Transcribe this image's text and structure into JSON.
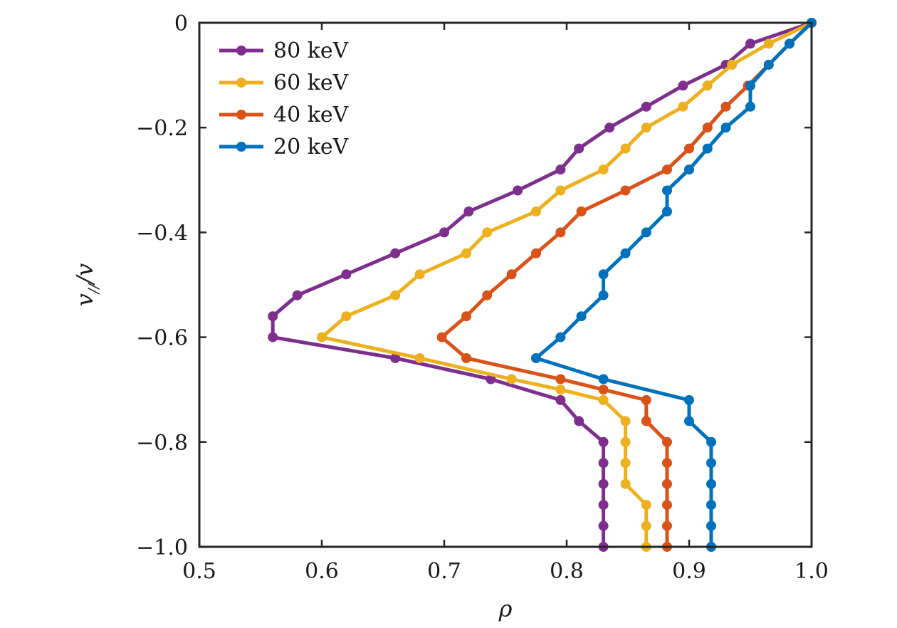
{
  "chart_data": {
    "type": "line",
    "title": "",
    "xlabel": "ρ",
    "ylabel": "v//v",
    "ylabel_parts": {
      "main": "v",
      "sub": "//",
      "rest": "/v"
    },
    "xlim": [
      0.5,
      1.0
    ],
    "ylim": [
      -1.0,
      0
    ],
    "xticks": [
      0.5,
      0.6,
      0.7,
      0.8,
      0.9,
      1.0
    ],
    "xtick_labels": [
      "0.5",
      "0.6",
      "0.7",
      "0.8",
      "0.9",
      "1.0"
    ],
    "yticks": [
      0,
      -0.2,
      -0.4,
      -0.6,
      -0.8,
      -1.0
    ],
    "ytick_labels": [
      "0",
      "−0.2",
      "−0.4",
      "−0.6",
      "−0.8",
      "−1.0"
    ],
    "grid": false,
    "legend": "top-left",
    "series": [
      {
        "name": "80 keV",
        "color": "#7e2f8e",
        "points": [
          [
            1.0,
            0
          ],
          [
            0.95,
            -0.04
          ],
          [
            0.93,
            -0.08
          ],
          [
            0.895,
            -0.12
          ],
          [
            0.865,
            -0.16
          ],
          [
            0.835,
            -0.2
          ],
          [
            0.81,
            -0.24
          ],
          [
            0.795,
            -0.28
          ],
          [
            0.76,
            -0.32
          ],
          [
            0.72,
            -0.36
          ],
          [
            0.7,
            -0.4
          ],
          [
            0.66,
            -0.44
          ],
          [
            0.62,
            -0.48
          ],
          [
            0.58,
            -0.52
          ],
          [
            0.56,
            -0.56
          ],
          [
            0.56,
            -0.6
          ],
          [
            0.66,
            -0.64
          ],
          [
            0.738,
            -0.68
          ],
          [
            0.795,
            -0.72
          ],
          [
            0.81,
            -0.76
          ],
          [
            0.83,
            -0.8
          ],
          [
            0.83,
            -0.84
          ],
          [
            0.83,
            -0.88
          ],
          [
            0.83,
            -0.92
          ],
          [
            0.83,
            -0.96
          ],
          [
            0.83,
            -1.0
          ]
        ]
      },
      {
        "name": "60 keV",
        "color": "#edb120",
        "points": [
          [
            1.0,
            0
          ],
          [
            0.965,
            -0.04
          ],
          [
            0.935,
            -0.08
          ],
          [
            0.915,
            -0.12
          ],
          [
            0.895,
            -0.16
          ],
          [
            0.865,
            -0.2
          ],
          [
            0.848,
            -0.24
          ],
          [
            0.83,
            -0.28
          ],
          [
            0.795,
            -0.32
          ],
          [
            0.775,
            -0.36
          ],
          [
            0.735,
            -0.4
          ],
          [
            0.718,
            -0.44
          ],
          [
            0.68,
            -0.48
          ],
          [
            0.66,
            -0.52
          ],
          [
            0.62,
            -0.56
          ],
          [
            0.6,
            -0.6
          ],
          [
            0.68,
            -0.64
          ],
          [
            0.755,
            -0.68
          ],
          [
            0.795,
            -0.7
          ],
          [
            0.83,
            -0.72
          ],
          [
            0.848,
            -0.76
          ],
          [
            0.848,
            -0.8
          ],
          [
            0.848,
            -0.84
          ],
          [
            0.848,
            -0.88
          ],
          [
            0.865,
            -0.92
          ],
          [
            0.865,
            -0.96
          ],
          [
            0.865,
            -1.0
          ]
        ]
      },
      {
        "name": "40 keV",
        "color": "#d95319",
        "points": [
          [
            1.0,
            0
          ],
          [
            0.982,
            -0.04
          ],
          [
            0.965,
            -0.08
          ],
          [
            0.948,
            -0.12
          ],
          [
            0.93,
            -0.16
          ],
          [
            0.915,
            -0.2
          ],
          [
            0.9,
            -0.24
          ],
          [
            0.882,
            -0.28
          ],
          [
            0.848,
            -0.32
          ],
          [
            0.812,
            -0.36
          ],
          [
            0.795,
            -0.4
          ],
          [
            0.775,
            -0.44
          ],
          [
            0.755,
            -0.48
          ],
          [
            0.735,
            -0.52
          ],
          [
            0.718,
            -0.56
          ],
          [
            0.698,
            -0.6
          ],
          [
            0.718,
            -0.64
          ],
          [
            0.795,
            -0.68
          ],
          [
            0.83,
            -0.7
          ],
          [
            0.865,
            -0.72
          ],
          [
            0.865,
            -0.76
          ],
          [
            0.882,
            -0.8
          ],
          [
            0.882,
            -0.84
          ],
          [
            0.882,
            -0.88
          ],
          [
            0.882,
            -0.92
          ],
          [
            0.882,
            -0.96
          ],
          [
            0.882,
            -1.0
          ]
        ]
      },
      {
        "name": "20 keV",
        "color": "#0072bd",
        "points": [
          [
            1.0,
            0
          ],
          [
            0.982,
            -0.04
          ],
          [
            0.965,
            -0.08
          ],
          [
            0.95,
            -0.12
          ],
          [
            0.95,
            -0.16
          ],
          [
            0.93,
            -0.2
          ],
          [
            0.915,
            -0.24
          ],
          [
            0.9,
            -0.28
          ],
          [
            0.882,
            -0.32
          ],
          [
            0.882,
            -0.36
          ],
          [
            0.865,
            -0.4
          ],
          [
            0.848,
            -0.44
          ],
          [
            0.83,
            -0.48
          ],
          [
            0.83,
            -0.52
          ],
          [
            0.812,
            -0.56
          ],
          [
            0.795,
            -0.6
          ],
          [
            0.775,
            -0.64
          ],
          [
            0.83,
            -0.68
          ],
          [
            0.9,
            -0.72
          ],
          [
            0.9,
            -0.76
          ],
          [
            0.918,
            -0.8
          ],
          [
            0.918,
            -0.84
          ],
          [
            0.918,
            -0.88
          ],
          [
            0.918,
            -0.92
          ],
          [
            0.918,
            -0.96
          ],
          [
            0.918,
            -1.0
          ]
        ]
      }
    ]
  }
}
